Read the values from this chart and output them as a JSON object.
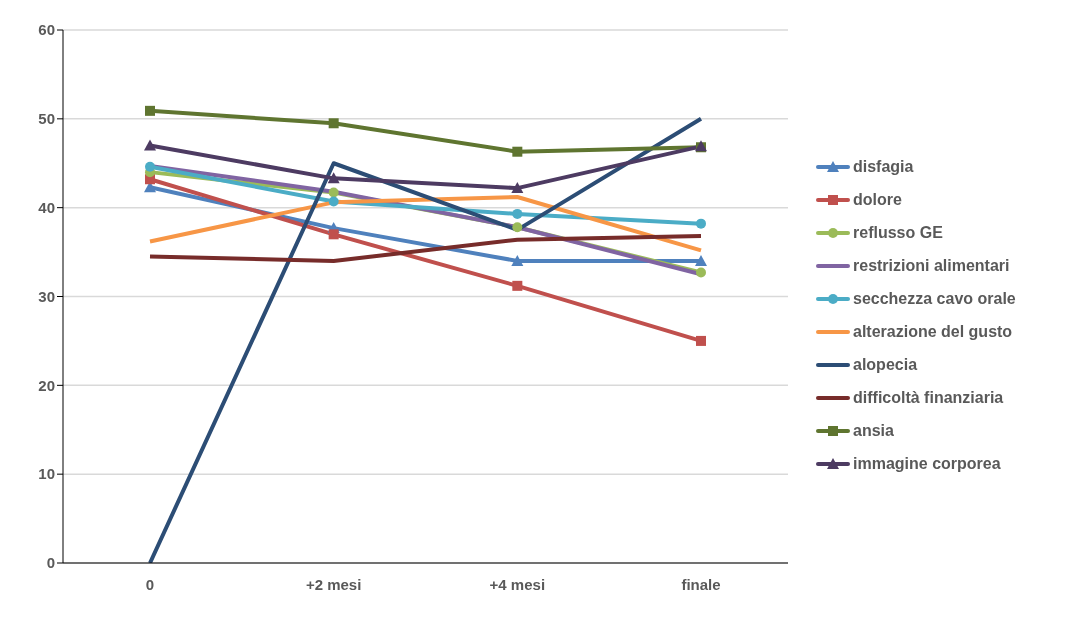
{
  "chart_data": {
    "type": "line",
    "categories": [
      "0",
      "+2 mesi",
      "+4 mesi",
      "finale"
    ],
    "series": [
      {
        "name": "disfagia",
        "color": "#4f81bd",
        "marker": "triangle",
        "values": [
          42.3,
          37.7,
          34,
          34
        ]
      },
      {
        "name": "dolore",
        "color": "#c0504d",
        "marker": "square",
        "values": [
          43.2,
          37,
          31.2,
          25
        ]
      },
      {
        "name": "reflusso GE",
        "color": "#9bbb59",
        "marker": "circle",
        "values": [
          44,
          41.7,
          37.8,
          32.7
        ]
      },
      {
        "name": "restrizioni alimentari",
        "color": "#8064a2",
        "marker": "none",
        "values": [
          44.7,
          41.8,
          37.8,
          32.5
        ]
      },
      {
        "name": "secchezza cavo orale",
        "color": "#4bacc6",
        "marker": "circle",
        "values": [
          44.6,
          40.7,
          39.3,
          38.2
        ]
      },
      {
        "name": "alterazione del gusto",
        "color": "#f79646",
        "marker": "none",
        "values": [
          36.2,
          40.6,
          41.2,
          35.2
        ]
      },
      {
        "name": "alopecia",
        "color": "#2c4d75",
        "marker": "none",
        "values": [
          0,
          45,
          37.5,
          50
        ]
      },
      {
        "name": "difficoltà finanziaria",
        "color": "#772c2a",
        "marker": "none",
        "values": [
          34.5,
          34,
          36.4,
          36.8
        ]
      },
      {
        "name": "ansia",
        "color": "#5f7530",
        "marker": "square",
        "values": [
          50.9,
          49.5,
          46.3,
          46.8
        ]
      },
      {
        "name": "immagine corporea",
        "color": "#4d3b62",
        "marker": "triangle",
        "values": [
          47,
          43.3,
          42.2,
          46.9
        ]
      }
    ],
    "ylim": [
      0,
      60
    ],
    "yticks": [
      0,
      10,
      20,
      30,
      40,
      50,
      60
    ],
    "grid": "y",
    "legend": "right"
  }
}
